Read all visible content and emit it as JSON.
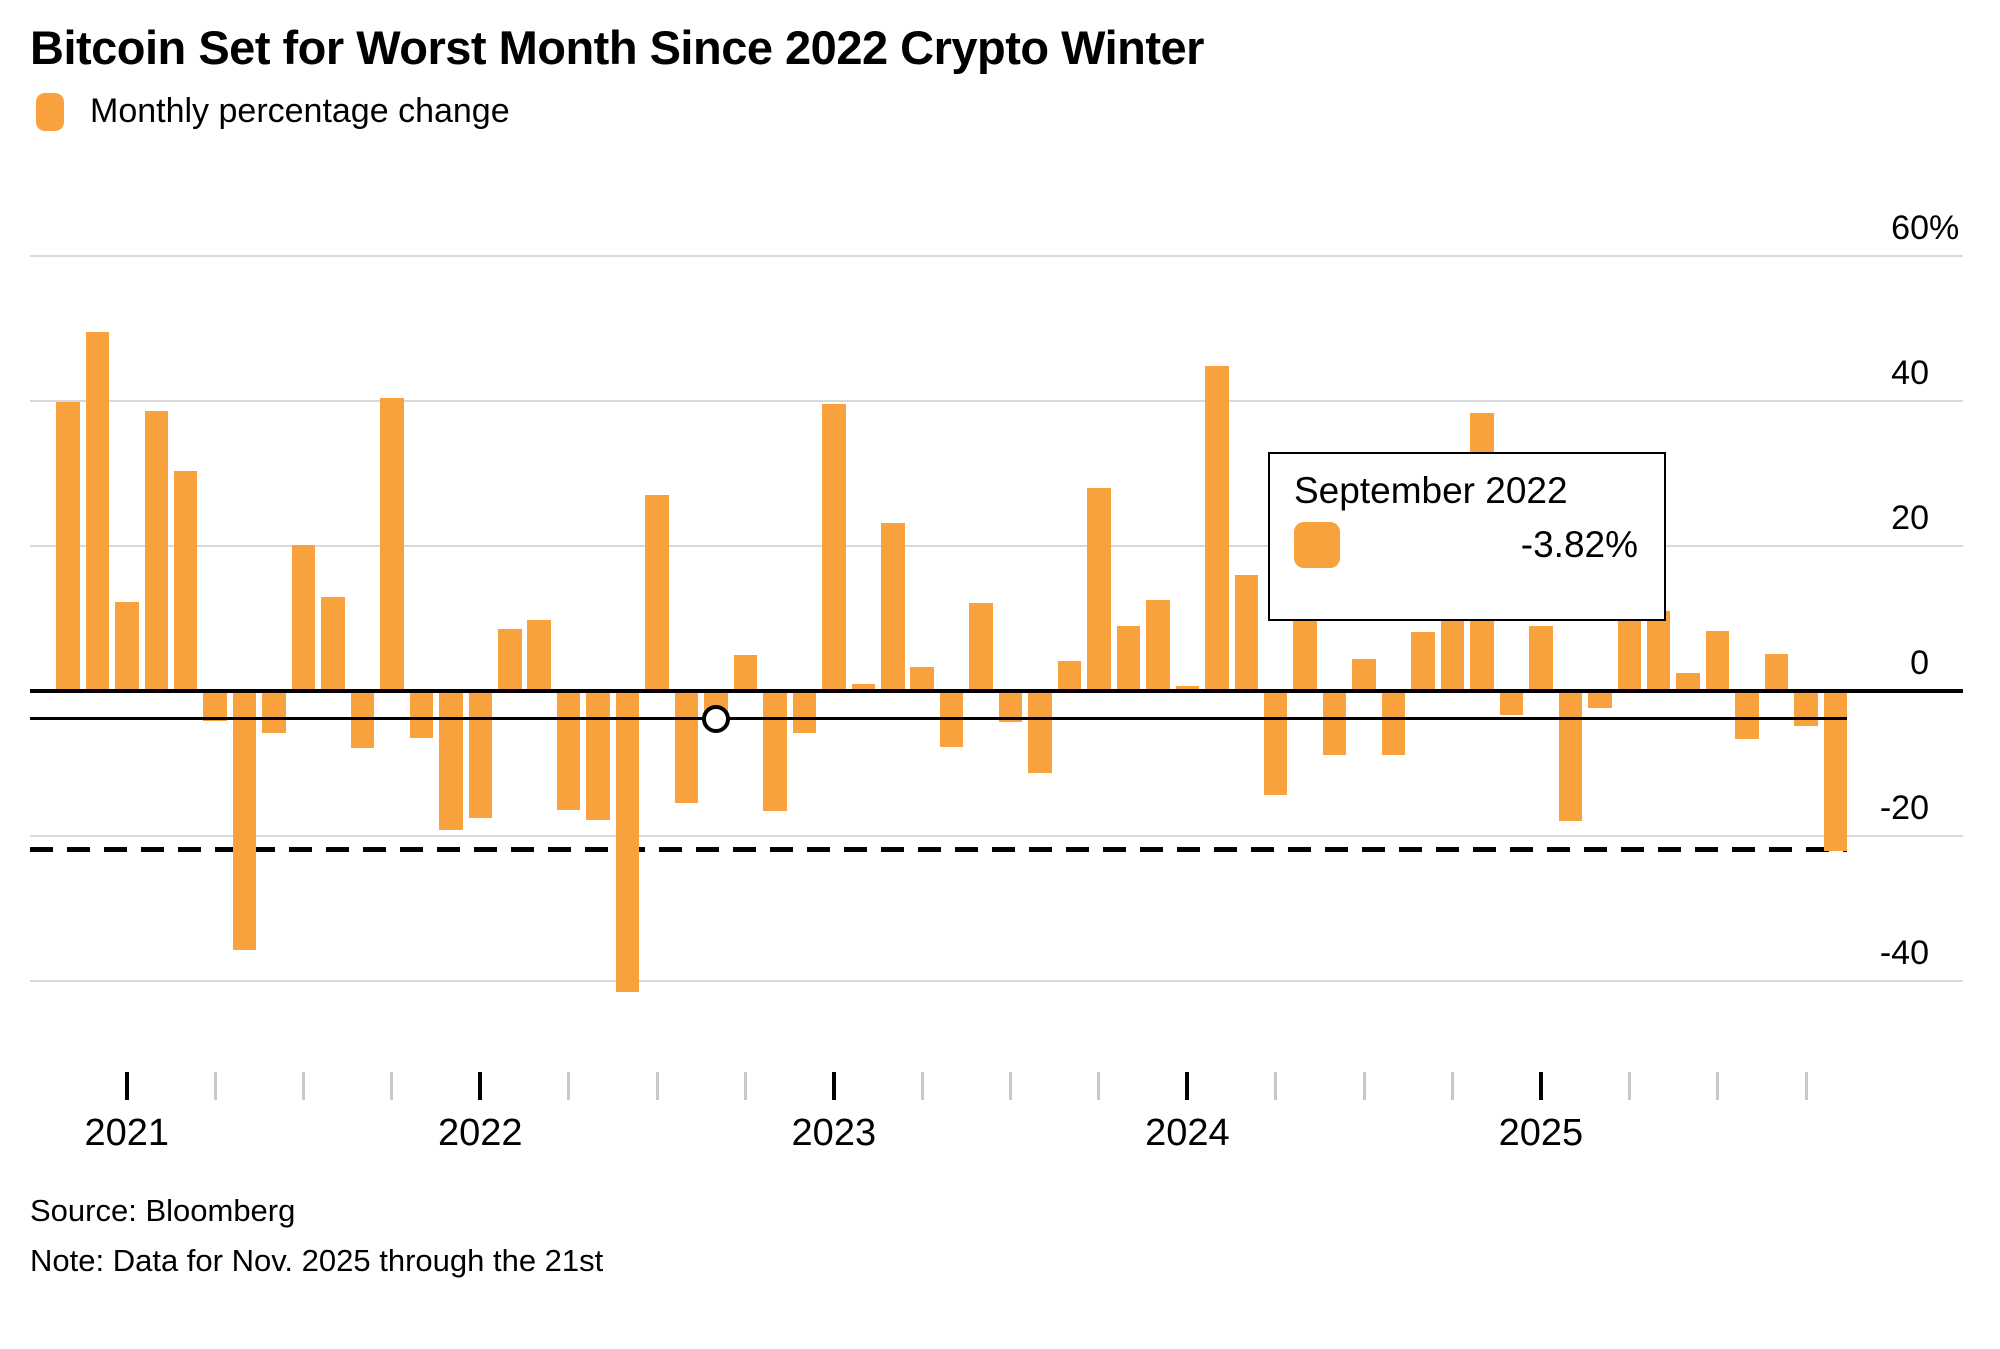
{
  "title": "Bitcoin Set for Worst Month Since 2022 Crypto Winter",
  "legend": {
    "label": "Monthly percentage change"
  },
  "colors": {
    "bar": "#F9A13C",
    "grid": "#D9D9D9",
    "minor_tick": "#C9C9C9",
    "axis": "#000000",
    "background": "#FFFFFF"
  },
  "tooltip": {
    "title": "September 2022",
    "value": "-3.82%"
  },
  "footer": {
    "source": "Source: Bloomberg",
    "note": "Note: Data for Nov. 2025 through the 21st"
  },
  "chart_data": {
    "type": "bar",
    "title": "Bitcoin Set for Worst Month Since 2022 Crypto Winter",
    "series_name": "Monthly percentage change",
    "unit": "%",
    "ylim": [
      -50,
      60
    ],
    "grid": "horizontal",
    "legend_position": "top-left",
    "x": [
      "Nov 2020",
      "Dec 2020",
      "Jan 2021",
      "Feb 2021",
      "Mar 2021",
      "Apr 2021",
      "May 2021",
      "Jun 2021",
      "Jul 2021",
      "Aug 2021",
      "Sep 2021",
      "Oct 2021",
      "Nov 2021",
      "Dec 2021",
      "Jan 2022",
      "Feb 2022",
      "Mar 2022",
      "Apr 2022",
      "May 2022",
      "Jun 2022",
      "Jul 2022",
      "Aug 2022",
      "Sep 2022",
      "Oct 2022",
      "Nov 2022",
      "Dec 2022",
      "Jan 2023",
      "Feb 2023",
      "Mar 2023",
      "Apr 2023",
      "May 2023",
      "Jun 2023",
      "Jul 2023",
      "Aug 2023",
      "Sep 2023",
      "Oct 2023",
      "Nov 2023",
      "Dec 2023",
      "Jan 2024",
      "Feb 2024",
      "Mar 2024",
      "Apr 2024",
      "May 2024",
      "Jun 2024",
      "Jul 2024",
      "Aug 2024",
      "Sep 2024",
      "Oct 2024",
      "Nov 2024",
      "Dec 2024",
      "Jan 2025",
      "Feb 2025",
      "Mar 2025",
      "Apr 2025",
      "May 2025",
      "Jun 2025",
      "Jul 2025",
      "Aug 2025",
      "Sep 2025",
      "Oct 2025",
      "Nov 2025"
    ],
    "values": [
      39.9,
      49.5,
      12.3,
      38.6,
      30.4,
      -3.9,
      -35.4,
      -5.5,
      20.2,
      13.0,
      -7.6,
      40.4,
      -6.2,
      -18.9,
      -17.3,
      8.5,
      9.8,
      -16.2,
      -17.5,
      -41.2,
      27.0,
      -15.2,
      -3.82,
      5.0,
      -16.3,
      -5.5,
      39.6,
      0.9,
      23.2,
      3.3,
      -7.5,
      12.1,
      -4.0,
      -11.0,
      4.1,
      28.0,
      9.0,
      12.6,
      0.7,
      44.8,
      16.0,
      -14.0,
      11.1,
      -8.6,
      4.4,
      -8.6,
      8.2,
      10.0,
      38.4,
      -3.1,
      8.9,
      -17.6,
      -2.0,
      14.0,
      11.0,
      2.5,
      8.3,
      -6.4,
      5.1,
      -4.5,
      -21.8
    ],
    "y_ticks": [
      {
        "value": 60,
        "label": "60%"
      },
      {
        "value": 40,
        "label": "40"
      },
      {
        "value": 20,
        "label": "20"
      },
      {
        "value": 0,
        "label": "0"
      },
      {
        "value": -20,
        "label": "-20"
      },
      {
        "value": -40,
        "label": "-40"
      }
    ],
    "x_year_ticks": [
      {
        "index": 2,
        "label": "2021"
      },
      {
        "index": 14,
        "label": "2022"
      },
      {
        "index": 26,
        "label": "2023"
      },
      {
        "index": 38,
        "label": "2024"
      },
      {
        "index": 50,
        "label": "2025"
      }
    ],
    "x_minor_tick_indexes": [
      5,
      8,
      11,
      17,
      20,
      23,
      29,
      32,
      35,
      41,
      44,
      47,
      53,
      56,
      59
    ],
    "annotations": {
      "hover_point": {
        "month": "September 2022",
        "value": -3.82,
        "index": 22
      },
      "dashed_reference_line": {
        "value": -21.8
      }
    }
  }
}
